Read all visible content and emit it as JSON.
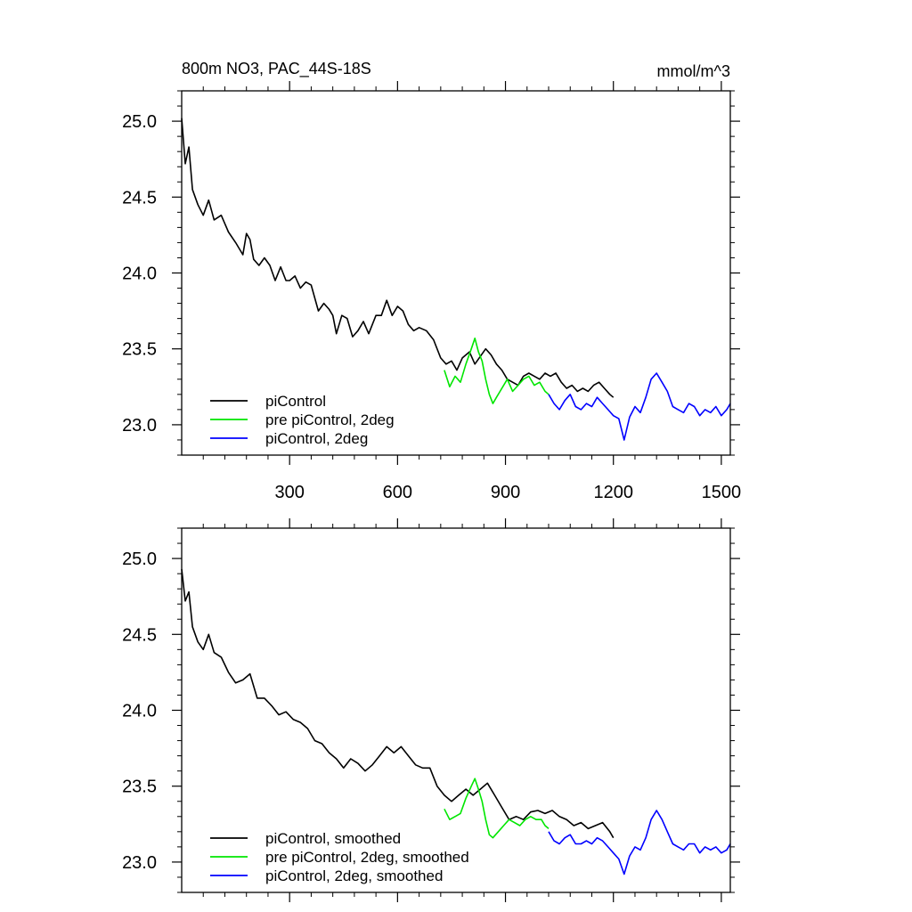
{
  "colors": {
    "piControl": "#000000",
    "pre_piControl_2deg": "#00e600",
    "piControl_2deg": "#0000ff"
  },
  "chart_data": [
    {
      "type": "line",
      "title_left": "800m NO3, PAC_44S-18S",
      "title_right": "mmol/m^3",
      "xlim": [
        0,
        1525
      ],
      "ylim": [
        22.8,
        25.2
      ],
      "x_ticks": [
        300,
        600,
        900,
        1200,
        1500
      ],
      "x_tick_labels": [
        "300",
        "600",
        "900",
        "1200",
        "1500"
      ],
      "show_x_tick_labels": true,
      "y_ticks": [
        23.0,
        23.5,
        24.0,
        24.5,
        25.0
      ],
      "y_tick_labels": [
        "23.0",
        "23.5",
        "24.0",
        "24.5",
        "25.0"
      ],
      "legend_position": "bottom-left",
      "series": [
        {
          "name": "piControl",
          "color_key": "piControl",
          "x": [
            0,
            10,
            20,
            30,
            45,
            60,
            75,
            90,
            110,
            130,
            150,
            170,
            180,
            190,
            200,
            215,
            230,
            245,
            260,
            275,
            290,
            300,
            315,
            330,
            345,
            360,
            380,
            395,
            410,
            420,
            430,
            445,
            460,
            475,
            490,
            505,
            520,
            540,
            555,
            570,
            585,
            600,
            615,
            630,
            645,
            660,
            680,
            700,
            720,
            735,
            750,
            765,
            780,
            800,
            815,
            830,
            845,
            860,
            875,
            890,
            905,
            920,
            935,
            950,
            965,
            980,
            995,
            1010,
            1025,
            1040,
            1055,
            1070,
            1085,
            1100,
            1115,
            1130,
            1145,
            1160,
            1175,
            1190,
            1200
          ],
          "y": [
            25.02,
            24.72,
            24.83,
            24.55,
            24.45,
            24.38,
            24.48,
            24.35,
            24.38,
            24.27,
            24.2,
            24.12,
            24.26,
            24.22,
            24.09,
            24.05,
            24.1,
            24.05,
            23.95,
            24.04,
            23.95,
            23.95,
            23.98,
            23.9,
            23.94,
            23.92,
            23.75,
            23.8,
            23.76,
            23.72,
            23.6,
            23.72,
            23.7,
            23.58,
            23.62,
            23.68,
            23.6,
            23.72,
            23.72,
            23.82,
            23.72,
            23.78,
            23.75,
            23.66,
            23.62,
            23.64,
            23.62,
            23.56,
            23.44,
            23.4,
            23.42,
            23.36,
            23.44,
            23.48,
            23.4,
            23.45,
            23.5,
            23.46,
            23.4,
            23.36,
            23.3,
            23.28,
            23.26,
            23.32,
            23.34,
            23.32,
            23.3,
            23.34,
            23.32,
            23.34,
            23.28,
            23.24,
            23.26,
            23.22,
            23.24,
            23.22,
            23.26,
            23.28,
            23.24,
            23.2,
            23.18
          ]
        },
        {
          "name": "pre piControl, 2deg",
          "color_key": "pre_piControl_2deg",
          "x": [
            730,
            745,
            760,
            775,
            790,
            805,
            815,
            825,
            835,
            845,
            855,
            865,
            875,
            890,
            905,
            920,
            935,
            950,
            965,
            980,
            995,
            1010,
            1020
          ],
          "y": [
            23.36,
            23.25,
            23.32,
            23.28,
            23.4,
            23.5,
            23.57,
            23.48,
            23.42,
            23.3,
            23.2,
            23.14,
            23.18,
            23.24,
            23.3,
            23.22,
            23.26,
            23.3,
            23.32,
            23.26,
            23.28,
            23.22,
            23.2
          ]
        },
        {
          "name": "piControl, 2deg",
          "color_key": "piControl_2deg",
          "x": [
            1020,
            1035,
            1050,
            1065,
            1080,
            1095,
            1110,
            1125,
            1140,
            1155,
            1170,
            1185,
            1200,
            1215,
            1230,
            1245,
            1260,
            1275,
            1290,
            1305,
            1320,
            1335,
            1350,
            1365,
            1380,
            1395,
            1410,
            1425,
            1440,
            1455,
            1470,
            1485,
            1500,
            1515,
            1525
          ],
          "y": [
            23.2,
            23.14,
            23.1,
            23.16,
            23.2,
            23.12,
            23.1,
            23.14,
            23.12,
            23.18,
            23.14,
            23.1,
            23.06,
            23.04,
            22.9,
            23.05,
            23.12,
            23.08,
            23.18,
            23.3,
            23.34,
            23.28,
            23.22,
            23.12,
            23.1,
            23.08,
            23.14,
            23.12,
            23.06,
            23.1,
            23.08,
            23.12,
            23.06,
            23.1,
            23.14
          ]
        }
      ],
      "legend": [
        {
          "label": "piControl",
          "color_key": "piControl"
        },
        {
          "label": "pre piControl, 2deg",
          "color_key": "pre_piControl_2deg"
        },
        {
          "label": "piControl, 2deg",
          "color_key": "piControl_2deg"
        }
      ]
    },
    {
      "type": "line",
      "title_left": "",
      "title_right": "",
      "xlim": [
        0,
        1525
      ],
      "ylim": [
        22.8,
        25.2
      ],
      "x_ticks": [
        300,
        600,
        900,
        1200,
        1500
      ],
      "x_tick_labels": [],
      "show_x_tick_labels": false,
      "y_ticks": [
        23.0,
        23.5,
        24.0,
        24.5,
        25.0
      ],
      "y_tick_labels": [
        "23.0",
        "23.5",
        "24.0",
        "24.5",
        "25.0"
      ],
      "legend_position": "bottom-left",
      "series": [
        {
          "name": "piControl, smoothed",
          "color_key": "piControl",
          "x": [
            0,
            10,
            20,
            30,
            45,
            60,
            75,
            90,
            110,
            130,
            150,
            170,
            190,
            210,
            230,
            250,
            270,
            290,
            310,
            330,
            350,
            370,
            390,
            410,
            430,
            450,
            470,
            490,
            510,
            530,
            550,
            570,
            590,
            610,
            630,
            650,
            670,
            690,
            710,
            730,
            750,
            770,
            790,
            810,
            830,
            850,
            870,
            890,
            910,
            930,
            950,
            970,
            990,
            1010,
            1030,
            1050,
            1070,
            1090,
            1110,
            1130,
            1150,
            1170,
            1190,
            1200
          ],
          "y": [
            24.93,
            24.72,
            24.78,
            24.55,
            24.45,
            24.4,
            24.5,
            24.38,
            24.35,
            24.25,
            24.18,
            24.2,
            24.24,
            24.08,
            24.08,
            24.03,
            23.97,
            23.99,
            23.94,
            23.92,
            23.88,
            23.8,
            23.78,
            23.72,
            23.68,
            23.62,
            23.68,
            23.65,
            23.6,
            23.64,
            23.7,
            23.76,
            23.72,
            23.76,
            23.7,
            23.64,
            23.62,
            23.62,
            23.5,
            23.44,
            23.4,
            23.44,
            23.48,
            23.44,
            23.48,
            23.52,
            23.44,
            23.36,
            23.28,
            23.3,
            23.28,
            23.33,
            23.34,
            23.32,
            23.34,
            23.3,
            23.28,
            23.24,
            23.26,
            23.22,
            23.24,
            23.26,
            23.2,
            23.16
          ]
        },
        {
          "name": "pre piControl, 2deg, smoothed",
          "color_key": "pre_piControl_2deg",
          "x": [
            730,
            745,
            760,
            775,
            790,
            805,
            815,
            825,
            835,
            845,
            855,
            865,
            880,
            895,
            910,
            925,
            940,
            955,
            970,
            985,
            1000,
            1010,
            1020
          ],
          "y": [
            23.35,
            23.28,
            23.3,
            23.32,
            23.42,
            23.5,
            23.55,
            23.48,
            23.4,
            23.28,
            23.18,
            23.16,
            23.2,
            23.24,
            23.28,
            23.26,
            23.24,
            23.28,
            23.3,
            23.28,
            23.28,
            23.24,
            23.22
          ]
        },
        {
          "name": "piControl, 2deg, smoothed",
          "color_key": "piControl_2deg",
          "x": [
            1020,
            1035,
            1050,
            1065,
            1080,
            1095,
            1110,
            1125,
            1140,
            1155,
            1170,
            1185,
            1200,
            1215,
            1230,
            1245,
            1260,
            1275,
            1290,
            1305,
            1320,
            1335,
            1350,
            1365,
            1380,
            1395,
            1410,
            1425,
            1440,
            1455,
            1470,
            1485,
            1500,
            1515,
            1525
          ],
          "y": [
            23.2,
            23.14,
            23.12,
            23.16,
            23.18,
            23.12,
            23.12,
            23.14,
            23.12,
            23.16,
            23.14,
            23.1,
            23.06,
            23.02,
            22.92,
            23.04,
            23.1,
            23.08,
            23.16,
            23.28,
            23.34,
            23.28,
            23.2,
            23.12,
            23.1,
            23.08,
            23.12,
            23.12,
            23.06,
            23.1,
            23.08,
            23.1,
            23.06,
            23.08,
            23.12
          ]
        }
      ],
      "legend": [
        {
          "label": "piControl, smoothed",
          "color_key": "piControl"
        },
        {
          "label": "pre piControl, 2deg, smoothed",
          "color_key": "pre_piControl_2deg"
        },
        {
          "label": "piControl, 2deg, smoothed",
          "color_key": "piControl_2deg"
        }
      ]
    }
  ]
}
